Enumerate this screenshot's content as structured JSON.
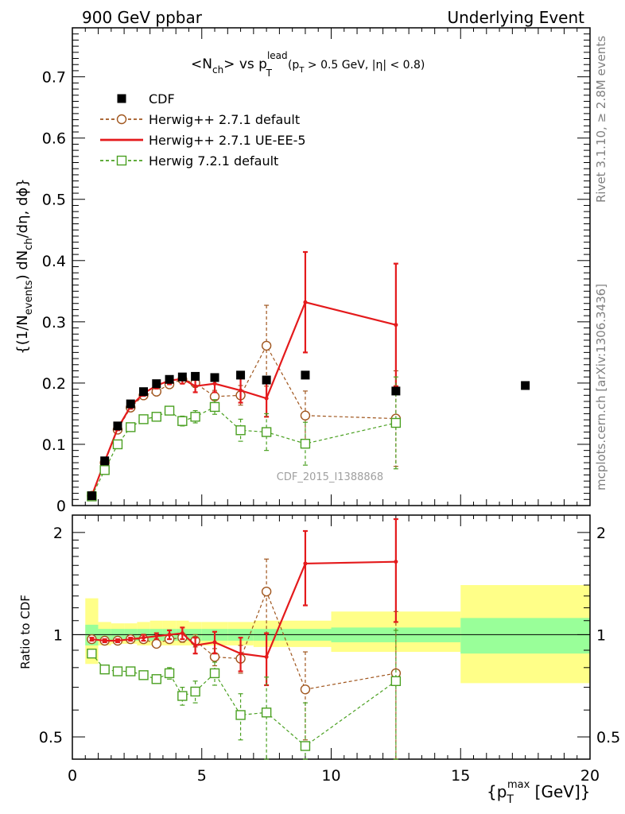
{
  "header": {
    "left": "900 GeV ppbar",
    "right": "Underlying Event"
  },
  "side_labels": {
    "rivet": "Rivet 3.1.10, ≥ 2.8M events",
    "mcplots": "mcplots.cern.ch [arXiv:1306.3436]"
  },
  "watermark": "CDF_2015_I1388868",
  "colors": {
    "cdf": "#000000",
    "h271": "#a0561e",
    "ueee5": "#e41a1c",
    "h721": "#4aa021",
    "band_yellow": "#ffff88",
    "band_green": "#99ff99"
  },
  "chart_data": [
    {
      "panel": "main",
      "type": "scatter",
      "title": "<N_ch> vs p_T^lead (p_T > 0.5 GeV, |η| < 0.8)",
      "title_parts": {
        "a": "<N",
        "a_sub": "ch",
        "b": "> vs p",
        "b_sup": "lead",
        "b_sub": "T",
        "c": "(p",
        "c_sub": "T",
        "d": " > 0.5 GeV, |η| < 0.8)"
      },
      "ylabel": "{(1/N_events) dN_ch/dη, dϕ}",
      "ylabel_parts": {
        "a": "{(1/N",
        "a_sub": "events",
        "b": ") dN",
        "b_sub": "ch",
        "c": "/dη, dϕ}"
      },
      "xlim": [
        0,
        20
      ],
      "ylim": [
        0,
        0.78
      ],
      "yticks": [
        "0",
        "0.1",
        "0.2",
        "0.3",
        "0.4",
        "0.5",
        "0.6",
        "0.7"
      ],
      "legend": [
        {
          "key": "cdf",
          "label": "CDF"
        },
        {
          "key": "h271",
          "label": "Herwig++ 2.7.1 default"
        },
        {
          "key": "ueee5",
          "label": "Herwig++ 2.7.1 UE-EE-5"
        },
        {
          "key": "h721",
          "label": "Herwig 7.2.1 default"
        }
      ],
      "series": [
        {
          "key": "cdf",
          "name": "CDF",
          "x": [
            0.75,
            1.25,
            1.75,
            2.25,
            2.75,
            3.25,
            3.75,
            4.25,
            4.75,
            5.5,
            6.5,
            7.5,
            9.0,
            12.5,
            17.5
          ],
          "y": [
            0.016,
            0.073,
            0.13,
            0.166,
            0.186,
            0.199,
            0.206,
            0.21,
            0.211,
            0.209,
            0.213,
            0.205,
            0.213,
            0.187,
            0.196
          ]
        },
        {
          "key": "h271",
          "name": "Herwig++ 2.7.1 default",
          "x": [
            0.75,
            1.25,
            1.75,
            2.25,
            2.75,
            3.25,
            3.75,
            4.25,
            4.75,
            5.5,
            6.5,
            7.5,
            9.0,
            12.5
          ],
          "y": [
            0.016,
            0.07,
            0.124,
            0.16,
            0.18,
            0.186,
            0.198,
            0.206,
            0.2,
            0.178,
            0.18,
            0.261,
            0.147,
            0.142
          ],
          "err": [
            0.002,
            0.003,
            0.003,
            0.004,
            0.004,
            0.004,
            0.005,
            0.006,
            0.007,
            0.01,
            0.016,
            0.066,
            0.04,
            0.078
          ]
        },
        {
          "key": "ueee5",
          "name": "Herwig++ 2.7.1 UE-EE-5",
          "x": [
            0.75,
            1.25,
            1.75,
            2.25,
            2.75,
            3.25,
            3.75,
            4.25,
            4.75,
            5.5,
            6.5,
            7.5,
            9.0,
            12.5
          ],
          "y": [
            0.016,
            0.072,
            0.126,
            0.162,
            0.183,
            0.196,
            0.204,
            0.207,
            0.195,
            0.199,
            0.188,
            0.175,
            0.332,
            0.295
          ],
          "err": [
            0.002,
            0.003,
            0.003,
            0.004,
            0.004,
            0.005,
            0.006,
            0.008,
            0.01,
            0.014,
            0.02,
            0.03,
            0.082,
            0.1
          ]
        },
        {
          "key": "h721",
          "name": "Herwig 7.2.1 default",
          "x": [
            0.75,
            1.25,
            1.75,
            2.25,
            2.75,
            3.25,
            3.75,
            4.25,
            4.75,
            5.5,
            6.5,
            7.5,
            9.0,
            12.5
          ],
          "y": [
            0.015,
            0.058,
            0.1,
            0.128,
            0.141,
            0.145,
            0.155,
            0.138,
            0.145,
            0.161,
            0.123,
            0.12,
            0.101,
            0.135
          ],
          "err": [
            0.002,
            0.003,
            0.003,
            0.004,
            0.004,
            0.004,
            0.005,
            0.008,
            0.01,
            0.012,
            0.018,
            0.03,
            0.035,
            0.075
          ]
        }
      ]
    },
    {
      "panel": "ratio",
      "type": "scatter",
      "ylabel": "Ratio to CDF",
      "xlabel": "{p_T^max [GeV]}",
      "xlabel_parts": {
        "a": "{p",
        "a_sub": "T",
        "a_sup": "max",
        "b": " [GeV]}"
      },
      "xlim": [
        0,
        20
      ],
      "ylim": [
        0.43,
        2.25
      ],
      "yscale": "log",
      "yticks": [
        "0.5",
        "1",
        "2"
      ],
      "xticks": [
        "0",
        "5",
        "10",
        "15",
        "20"
      ],
      "bands": {
        "edges": [
          0.5,
          1.0,
          1.5,
          2.0,
          2.5,
          3.0,
          3.5,
          4.0,
          4.5,
          5.0,
          6.0,
          7.0,
          8.0,
          10.0,
          15.0,
          20.0
        ],
        "stat_lo": [
          0.93,
          0.96,
          0.96,
          0.96,
          0.96,
          0.96,
          0.96,
          0.96,
          0.96,
          0.96,
          0.96,
          0.96,
          0.96,
          0.95,
          0.88
        ],
        "stat_hi": [
          1.07,
          1.04,
          1.04,
          1.04,
          1.04,
          1.04,
          1.04,
          1.04,
          1.04,
          1.04,
          1.04,
          1.04,
          1.04,
          1.05,
          1.12
        ],
        "tot_lo": [
          0.82,
          0.93,
          0.94,
          0.94,
          0.93,
          0.93,
          0.93,
          0.93,
          0.93,
          0.93,
          0.93,
          0.92,
          0.92,
          0.89,
          0.72
        ],
        "tot_hi": [
          1.28,
          1.09,
          1.08,
          1.08,
          1.09,
          1.1,
          1.1,
          1.1,
          1.09,
          1.09,
          1.09,
          1.1,
          1.1,
          1.17,
          1.4
        ]
      },
      "series": [
        {
          "key": "h271",
          "x": [
            0.75,
            1.25,
            1.75,
            2.25,
            2.75,
            3.25,
            3.75,
            4.25,
            4.75,
            5.5,
            6.5,
            7.5,
            9.0,
            12.5
          ],
          "y": [
            0.97,
            0.96,
            0.96,
            0.97,
            0.97,
            0.94,
            0.97,
            0.98,
            0.96,
            0.86,
            0.85,
            1.34,
            0.69,
            0.77
          ],
          "err": [
            0.01,
            0.01,
            0.01,
            0.01,
            0.02,
            0.02,
            0.02,
            0.03,
            0.04,
            0.05,
            0.08,
            0.33,
            0.2,
            0.4
          ]
        },
        {
          "key": "ueee5",
          "x": [
            0.75,
            1.25,
            1.75,
            2.25,
            2.75,
            3.25,
            3.75,
            4.25,
            4.75,
            5.5,
            6.5,
            7.5,
            9.0,
            12.5
          ],
          "y": [
            0.97,
            0.96,
            0.96,
            0.97,
            0.98,
            0.99,
            1.0,
            1.01,
            0.93,
            0.95,
            0.88,
            0.86,
            1.62,
            1.64
          ],
          "err": [
            0.01,
            0.01,
            0.01,
            0.01,
            0.02,
            0.02,
            0.03,
            0.04,
            0.05,
            0.07,
            0.1,
            0.15,
            0.4,
            0.55
          ]
        },
        {
          "key": "h721",
          "x": [
            0.75,
            1.25,
            1.75,
            2.25,
            2.75,
            3.25,
            3.75,
            4.25,
            4.75,
            5.5,
            6.5,
            7.5,
            9.0,
            12.5
          ],
          "y": [
            0.88,
            0.79,
            0.78,
            0.78,
            0.76,
            0.74,
            0.77,
            0.66,
            0.68,
            0.77,
            0.58,
            0.59,
            0.47,
            0.73
          ],
          "err": [
            0.02,
            0.02,
            0.02,
            0.02,
            0.02,
            0.02,
            0.03,
            0.04,
            0.05,
            0.06,
            0.09,
            0.16,
            0.16,
            0.3
          ]
        }
      ]
    }
  ]
}
